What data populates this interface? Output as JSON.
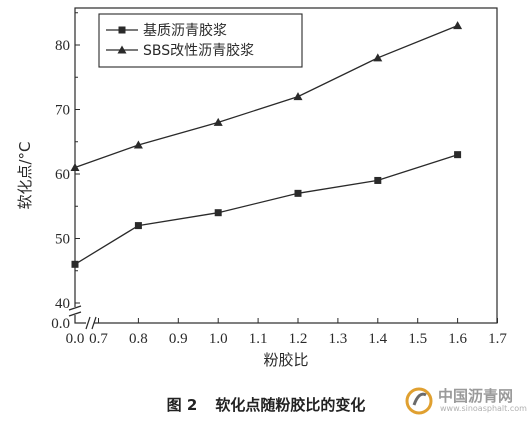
{
  "chart_data": {
    "type": "line",
    "ylabel": "软化点/°C",
    "xlabel": "粉胶比",
    "ylim": [
      40,
      85
    ],
    "yticks": [
      "40",
      "50",
      "60",
      "70",
      "80"
    ],
    "y_break_tick": "0.0",
    "xlim": [
      0.7,
      1.7
    ],
    "xticks": [
      "0.7",
      "0.8",
      "0.9",
      "1.0",
      "1.1",
      "1.2",
      "1.3",
      "1.4",
      "1.5",
      "1.6",
      "1.7"
    ],
    "x_break_tick": "0.0",
    "axis_breaks": true,
    "grid": false,
    "legend_position": "top-left",
    "series": [
      {
        "name": "基质沥青胶浆",
        "marker": "square",
        "x": [
          0.0,
          0.8,
          1.0,
          1.2,
          1.4,
          1.6
        ],
        "y": [
          46,
          52,
          54,
          57,
          59,
          63
        ]
      },
      {
        "name": "SBS改性沥青胶浆",
        "marker": "triangle",
        "x": [
          0.0,
          0.8,
          1.0,
          1.2,
          1.4,
          1.6
        ],
        "y": [
          61,
          64.5,
          68,
          72,
          78,
          83
        ]
      }
    ]
  },
  "caption": {
    "number": "图 2",
    "text": "软化点随粉胶比的变化"
  },
  "watermark": {
    "name": "中国沥青网",
    "url": "www.sinoasphalt.com"
  },
  "colors": {
    "line": "#2a2a2a",
    "text": "#222222",
    "watermark": "#9a9a9a"
  }
}
